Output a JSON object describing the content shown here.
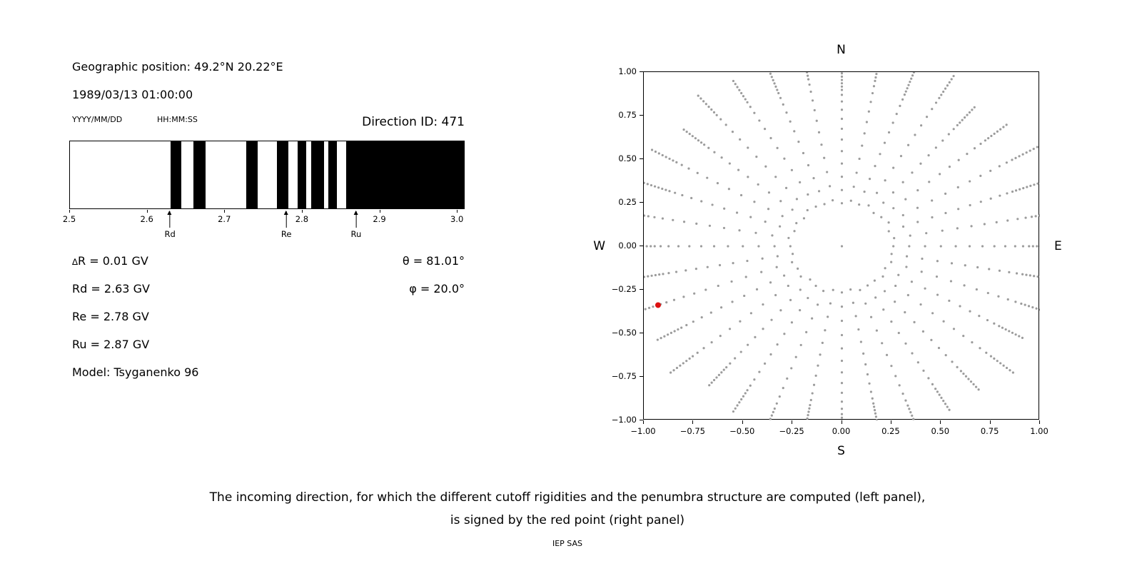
{
  "header": {
    "geo_position": "Geographic position: 49.2°N 20.22°E",
    "datetime": "1989/03/13 01:00:00",
    "date_format_label": "YYYY/MM/DD",
    "time_format_label": "HH:MM:SS",
    "direction_id": "Direction ID: 471"
  },
  "info": {
    "delta_symbol": "∆",
    "delta_rest": "R = 0.01 GV",
    "rd": "Rd = 2.63 GV",
    "re": "Re = 2.78 GV",
    "ru": "Ru = 2.87 GV",
    "model": "Model: Tsyganenko 96",
    "theta": "θ = 81.01°",
    "phi": "φ = 20.0°"
  },
  "caption": {
    "line1": "The incoming direction, for which the different cutoff rigidities and the penumbra structure are computed (left panel),",
    "line2": "is signed by the red point (right panel)",
    "credit": "IEP SAS"
  },
  "chart_data": [
    {
      "id": "penumbra",
      "type": "bar",
      "xlim": [
        2.5,
        3.01
      ],
      "xticks": [
        2.5,
        2.6,
        2.7,
        2.8,
        2.9,
        3.0
      ],
      "xtick_labels": [
        "2.5",
        "2.6",
        "2.7",
        "2.8",
        "2.9",
        "3.0"
      ],
      "band_color": "#000000",
      "bands_gv": [
        [
          2.63,
          2.644
        ],
        [
          2.66,
          2.676
        ],
        [
          2.728,
          2.743
        ],
        [
          2.768,
          2.783
        ],
        [
          2.795,
          2.806
        ],
        [
          2.812,
          2.829
        ],
        [
          2.834,
          2.846
        ],
        [
          2.858,
          3.01
        ]
      ],
      "markers": [
        {
          "label": "Rd",
          "value_gv": 2.63
        },
        {
          "label": "Re",
          "value_gv": 2.78
        },
        {
          "label": "Ru",
          "value_gv": 2.87
        }
      ],
      "values": {
        "delta_R_gv": 0.01,
        "Rd_gv": 2.63,
        "Re_gv": 2.78,
        "Ru_gv": 2.87,
        "theta_deg": 81.01,
        "phi_deg": 20.0,
        "direction_id": 471,
        "model": "Tsyganenko 96"
      }
    },
    {
      "id": "directions",
      "type": "scatter",
      "xlim": [
        -1,
        1
      ],
      "ylim": [
        -1,
        1
      ],
      "xticks": [
        -1,
        -0.75,
        -0.5,
        -0.25,
        0,
        0.25,
        0.5,
        0.75,
        1
      ],
      "xtick_labels": [
        "−1.00",
        "−0.75",
        "−0.50",
        "−0.25",
        "0.00",
        "0.25",
        "0.50",
        "0.75",
        "1.00"
      ],
      "yticks": [
        -1,
        -0.75,
        -0.5,
        -0.25,
        0,
        0.25,
        0.5,
        0.75,
        1
      ],
      "ytick_labels": [
        "−1.00",
        "−0.75",
        "−0.50",
        "−0.25",
        "0.00",
        "0.25",
        "0.50",
        "0.75",
        "1.00"
      ],
      "compass": {
        "top": "N",
        "bottom": "S",
        "left": "W",
        "right": "E"
      },
      "grid_points": {
        "azimuth_start_deg": 0,
        "azimuth_step_deg": 10,
        "azimuth_count": 36,
        "radii": [
          0.26,
          0.34,
          0.42,
          0.5,
          0.575,
          0.645,
          0.71,
          0.77,
          0.825,
          0.875,
          0.915,
          0.945,
          0.965,
          0.985,
          1.005,
          1.025,
          1.045,
          1.065,
          1.085
        ],
        "spoke_scale": [
          1.0,
          1.03,
          0.97,
          1.05,
          1.0,
          0.96,
          1.04,
          0.98,
          1.02,
          0.95,
          1.03,
          0.99,
          1.01,
          1.04,
          0.96,
          1.02,
          0.98,
          1.05,
          1.0,
          0.97,
          1.03,
          0.99,
          1.04,
          0.96,
          1.01,
          1.05,
          0.98,
          1.02,
          0.97,
          1.03,
          1.0,
          0.99,
          1.04,
          0.97,
          1.02,
          0.98
        ],
        "center_dot": true,
        "color": "#9c9c9c",
        "dot_radius_px": 1.6
      },
      "red_point": {
        "x": -0.928,
        "y": -0.338,
        "color": "#dd1111",
        "radius_px": 4
      }
    }
  ]
}
